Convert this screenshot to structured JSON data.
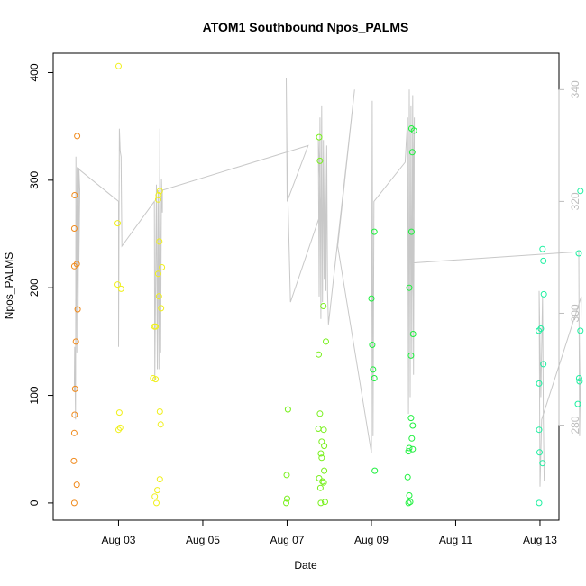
{
  "chart_data": {
    "type": "scatter",
    "title": "ATOM1 Southbound Npos_PALMS",
    "xlabel": "Date",
    "ylabel": "Npos_PALMS",
    "x_axis": {
      "unit": "days since Aug 01 00:00",
      "ticks": [
        {
          "value": 2,
          "label": "Aug 03"
        },
        {
          "value": 4,
          "label": "Aug 05"
        },
        {
          "value": 6,
          "label": "Aug 07"
        },
        {
          "value": 8,
          "label": "Aug 09"
        },
        {
          "value": 10,
          "label": "Aug 11"
        },
        {
          "value": 12,
          "label": "Aug 13"
        }
      ],
      "xlim": [
        0.45,
        12.45
      ]
    },
    "y_axis_left": {
      "ticks": [
        0,
        100,
        200,
        300,
        400
      ],
      "ylim": [
        -16,
        418
      ]
    },
    "y_axis_right": {
      "ticks": [
        280,
        300,
        320,
        340
      ],
      "ylim": [
        263,
        346.5
      ],
      "color": "#bdbdbd"
    },
    "grid": false,
    "legend": "none",
    "series": [
      {
        "color": "#f08a1c",
        "points": [
          [
            0.95,
            0
          ],
          [
            0.94,
            39
          ],
          [
            0.95,
            65
          ],
          [
            0.96,
            82
          ],
          [
            0.97,
            106
          ],
          [
            0.99,
            150
          ],
          [
            1.03,
            180
          ],
          [
            1.01,
            222
          ],
          [
            0.95,
            220
          ],
          [
            0.95,
            255
          ],
          [
            0.96,
            286
          ],
          [
            1.02,
            341
          ],
          [
            1.01,
            17
          ]
        ]
      },
      {
        "color": "#f0f01c",
        "points": [
          [
            2.0,
            406
          ],
          [
            1.98,
            260
          ],
          [
            1.98,
            203
          ],
          [
            2.06,
            199
          ],
          [
            2.02,
            84
          ],
          [
            2.04,
            70
          ],
          [
            2.0,
            68
          ],
          [
            2.9,
            0
          ],
          [
            2.86,
            6
          ],
          [
            2.92,
            12
          ],
          [
            2.98,
            22
          ],
          [
            3.0,
            73
          ],
          [
            2.98,
            85
          ],
          [
            2.82,
            116
          ],
          [
            2.88,
            115
          ],
          [
            2.85,
            164
          ],
          [
            2.88,
            164
          ],
          [
            3.01,
            181
          ],
          [
            2.96,
            192
          ],
          [
            3.03,
            219
          ],
          [
            2.94,
            213
          ],
          [
            2.97,
            243
          ],
          [
            2.94,
            282
          ],
          [
            2.98,
            290
          ],
          [
            2.95,
            286
          ]
        ]
      },
      {
        "color": "#78f01c",
        "points": [
          [
            5.98,
            0
          ],
          [
            6.0,
            4
          ],
          [
            5.99,
            26
          ],
          [
            6.02,
            87
          ],
          [
            6.8,
            0
          ],
          [
            6.9,
            1
          ],
          [
            6.79,
            14
          ],
          [
            6.84,
            20
          ],
          [
            6.87,
            19
          ],
          [
            6.76,
            23
          ],
          [
            6.82,
            42
          ],
          [
            6.8,
            46
          ],
          [
            6.88,
            53
          ],
          [
            6.82,
            57
          ],
          [
            6.87,
            68
          ],
          [
            6.74,
            69
          ],
          [
            6.78,
            83
          ],
          [
            6.75,
            138
          ],
          [
            6.92,
            150
          ],
          [
            6.86,
            183
          ],
          [
            6.78,
            318
          ],
          [
            6.76,
            340
          ],
          [
            6.88,
            30
          ]
        ]
      },
      {
        "color": "#1cf03c",
        "points": [
          [
            8.02,
            147
          ],
          [
            8.0,
            190
          ],
          [
            8.07,
            252
          ],
          [
            8.04,
            124
          ],
          [
            8.07,
            116
          ],
          [
            8.08,
            30
          ],
          [
            8.88,
            0
          ],
          [
            8.92,
            1
          ],
          [
            8.9,
            7
          ],
          [
            8.86,
            24
          ],
          [
            8.88,
            48
          ],
          [
            8.9,
            51
          ],
          [
            8.98,
            50
          ],
          [
            8.96,
            60
          ],
          [
            8.98,
            72
          ],
          [
            8.94,
            79
          ],
          [
            8.94,
            137
          ],
          [
            8.99,
            157
          ],
          [
            8.9,
            200
          ],
          [
            8.95,
            252
          ],
          [
            8.97,
            326
          ],
          [
            8.95,
            348
          ],
          [
            9.01,
            346
          ]
        ]
      },
      {
        "color": "#1cf0a0",
        "points": [
          [
            11.98,
            0
          ],
          [
            11.99,
            47
          ],
          [
            12.06,
            37
          ],
          [
            11.98,
            68
          ],
          [
            11.98,
            111
          ],
          [
            12.08,
            129
          ],
          [
            11.97,
            160
          ],
          [
            12.02,
            162
          ],
          [
            12.09,
            194
          ],
          [
            12.08,
            225
          ],
          [
            12.06,
            236
          ],
          [
            12.9,
            92
          ],
          [
            12.94,
            113
          ],
          [
            12.93,
            116
          ],
          [
            12.96,
            160
          ],
          [
            12.92,
            232
          ],
          [
            12.96,
            290
          ]
        ]
      }
    ],
    "secondary_line": {
      "color": "#c8c8c8",
      "axis": "right",
      "points": [
        [
          0.95,
          286
        ],
        [
          0.96,
          294
        ],
        [
          0.98,
          281
        ],
        [
          0.99,
          328
        ],
        [
          1.01,
          293
        ],
        [
          1.02,
          326
        ],
        [
          1.04,
          300
        ],
        [
          1.06,
          326
        ],
        [
          1.08,
          322
        ],
        [
          1.06,
          309
        ],
        [
          1.02,
          326
        ],
        [
          2.0,
          320
        ],
        [
          2.0,
          294
        ],
        [
          2.02,
          333
        ],
        [
          2.04,
          329
        ],
        [
          2.06,
          328
        ],
        [
          2.08,
          312
        ],
        [
          2.85,
          320
        ],
        [
          2.86,
          288
        ],
        [
          2.9,
          323
        ],
        [
          2.92,
          290
        ],
        [
          2.94,
          322
        ],
        [
          2.96,
          290
        ],
        [
          2.98,
          333
        ],
        [
          3.0,
          293
        ],
        [
          3.02,
          324
        ],
        [
          3.04,
          318
        ],
        [
          3.04,
          322
        ],
        [
          6.5,
          330
        ],
        [
          6.0,
          320
        ],
        [
          5.98,
          342
        ],
        [
          6.0,
          326
        ],
        [
          6.08,
          302
        ],
        [
          6.8,
          318
        ],
        [
          6.74,
          331
        ],
        [
          6.76,
          303
        ],
        [
          6.78,
          335
        ],
        [
          6.8,
          299
        ],
        [
          6.82,
          337
        ],
        [
          6.84,
          302
        ],
        [
          6.86,
          331
        ],
        [
          6.88,
          306
        ],
        [
          6.9,
          330
        ],
        [
          6.92,
          304
        ],
        [
          6.94,
          330
        ],
        [
          6.96,
          304
        ],
        [
          6.98,
          298
        ],
        [
          7.6,
          340
        ],
        [
          7.2,
          312
        ],
        [
          8.0,
          275
        ],
        [
          8.02,
          338
        ],
        [
          8.04,
          278
        ],
        [
          8.06,
          320
        ],
        [
          8.8,
          327
        ],
        [
          8.86,
          335
        ],
        [
          8.88,
          282
        ],
        [
          8.9,
          340
        ],
        [
          8.92,
          285
        ],
        [
          8.94,
          337
        ],
        [
          8.96,
          292
        ],
        [
          8.98,
          339
        ],
        [
          9.0,
          289
        ],
        [
          9.02,
          335
        ],
        [
          8.96,
          301
        ],
        [
          8.98,
          309
        ],
        [
          12.92,
          311
        ],
        [
          12.94,
          278
        ],
        [
          12.96,
          288
        ],
        [
          12.98,
          303
        ],
        [
          12.04,
          281
        ],
        [
          12.0,
          269
        ],
        [
          11.98,
          304
        ],
        [
          12.02,
          285
        ],
        [
          12.06,
          303
        ],
        [
          12.08,
          281
        ],
        [
          12.1,
          270
        ]
      ]
    }
  }
}
